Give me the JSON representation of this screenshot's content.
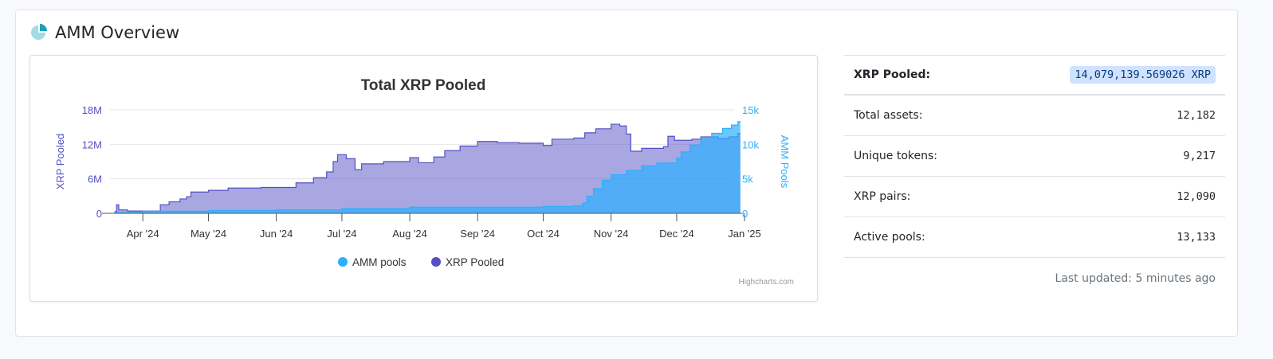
{
  "header": {
    "title": "AMM Overview",
    "icon": "pie-chart-icon"
  },
  "chart_data": {
    "type": "area",
    "title": "Total XRP Pooled",
    "credit": "Highcharts.com",
    "legend_position": "bottom",
    "grid": true,
    "x_ticks": [
      "Apr '24",
      "May '24",
      "Jun '24",
      "Jul '24",
      "Aug '24",
      "Sep '24",
      "Oct '24",
      "Nov '24",
      "Dec '24",
      "Jan '25"
    ],
    "x_range": [
      "2024-03-17",
      "2025-01-01"
    ],
    "y_axes": [
      {
        "label": "XRP Pooled",
        "ticks": [
          "0",
          "6M",
          "12M",
          "18M"
        ],
        "range": [
          0,
          18000000
        ],
        "color": "#544fc5",
        "side": "left"
      },
      {
        "label": "AMM Pools",
        "ticks": [
          "0",
          "5k",
          "10k",
          "15k"
        ],
        "range": [
          0,
          15000
        ],
        "color": "#2caffe",
        "side": "right"
      }
    ],
    "series": [
      {
        "name": "AMM pools",
        "axis": 1,
        "color": "#2caffe",
        "points": [
          [
            "2024-03-19",
            100
          ],
          [
            "2024-04-01",
            300
          ],
          [
            "2024-05-01",
            400
          ],
          [
            "2024-06-01",
            500
          ],
          [
            "2024-07-01",
            700
          ],
          [
            "2024-08-01",
            900
          ],
          [
            "2024-09-01",
            900
          ],
          [
            "2024-10-01",
            1000
          ],
          [
            "2024-10-15",
            1100
          ],
          [
            "2024-10-19",
            1500
          ],
          [
            "2024-10-21",
            2500
          ],
          [
            "2024-10-24",
            3600
          ],
          [
            "2024-10-28",
            4800
          ],
          [
            "2024-11-01",
            5600
          ],
          [
            "2024-11-08",
            6200
          ],
          [
            "2024-11-15",
            6900
          ],
          [
            "2024-11-22",
            7300
          ],
          [
            "2024-12-01",
            8000
          ],
          [
            "2024-12-03",
            8900
          ],
          [
            "2024-12-07",
            9900
          ],
          [
            "2024-12-12",
            10800
          ],
          [
            "2024-12-17",
            11600
          ],
          [
            "2024-12-22",
            12300
          ],
          [
            "2024-12-26",
            12800
          ],
          [
            "2024-12-29",
            13300
          ]
        ]
      },
      {
        "name": "XRP Pooled",
        "axis": 0,
        "color": "#544fc5",
        "points": [
          [
            "2024-03-19",
            300000
          ],
          [
            "2024-03-20",
            1500000
          ],
          [
            "2024-03-21",
            600000
          ],
          [
            "2024-03-25",
            400000
          ],
          [
            "2024-04-09",
            1500000
          ],
          [
            "2024-04-13",
            2000000
          ],
          [
            "2024-04-18",
            2500000
          ],
          [
            "2024-04-21",
            2900000
          ],
          [
            "2024-04-23",
            3700000
          ],
          [
            "2024-05-01",
            4000000
          ],
          [
            "2024-05-10",
            4400000
          ],
          [
            "2024-05-25",
            4500000
          ],
          [
            "2024-06-01",
            4500000
          ],
          [
            "2024-06-10",
            5300000
          ],
          [
            "2024-06-18",
            6200000
          ],
          [
            "2024-06-24",
            7200000
          ],
          [
            "2024-06-27",
            9000000
          ],
          [
            "2024-06-29",
            10200000
          ],
          [
            "2024-07-03",
            9500000
          ],
          [
            "2024-07-07",
            7600000
          ],
          [
            "2024-07-10",
            8600000
          ],
          [
            "2024-07-20",
            9000000
          ],
          [
            "2024-08-01",
            9700000
          ],
          [
            "2024-08-05",
            8800000
          ],
          [
            "2024-08-12",
            9800000
          ],
          [
            "2024-08-17",
            10900000
          ],
          [
            "2024-08-24",
            11700000
          ],
          [
            "2024-09-01",
            12500000
          ],
          [
            "2024-09-10",
            12300000
          ],
          [
            "2024-09-20",
            12200000
          ],
          [
            "2024-10-01",
            11800000
          ],
          [
            "2024-10-05",
            12900000
          ],
          [
            "2024-10-15",
            13100000
          ],
          [
            "2024-10-20",
            14000000
          ],
          [
            "2024-10-25",
            14700000
          ],
          [
            "2024-11-01",
            15500000
          ],
          [
            "2024-11-05",
            15200000
          ],
          [
            "2024-11-08",
            13800000
          ],
          [
            "2024-11-10",
            10800000
          ],
          [
            "2024-11-15",
            11300000
          ],
          [
            "2024-11-25",
            11600000
          ],
          [
            "2024-11-27",
            13400000
          ],
          [
            "2024-11-30",
            12700000
          ],
          [
            "2024-12-08",
            12900000
          ],
          [
            "2024-12-12",
            13300000
          ],
          [
            "2024-12-20",
            13000000
          ],
          [
            "2024-12-25",
            13300000
          ],
          [
            "2024-12-29",
            13900000
          ]
        ]
      }
    ]
  },
  "stats": {
    "xrp_pooled": {
      "label": "XRP Pooled:",
      "value": "14,079,139.569026 XRP"
    },
    "rows": [
      {
        "label": "Total assets:",
        "value": "12,182"
      },
      {
        "label": "Unique tokens:",
        "value": "9,217"
      },
      {
        "label": "XRP pairs:",
        "value": "12,090"
      },
      {
        "label": "Active pools:",
        "value": "13,133"
      }
    ],
    "last_updated": "Last updated: 5 minutes ago"
  }
}
